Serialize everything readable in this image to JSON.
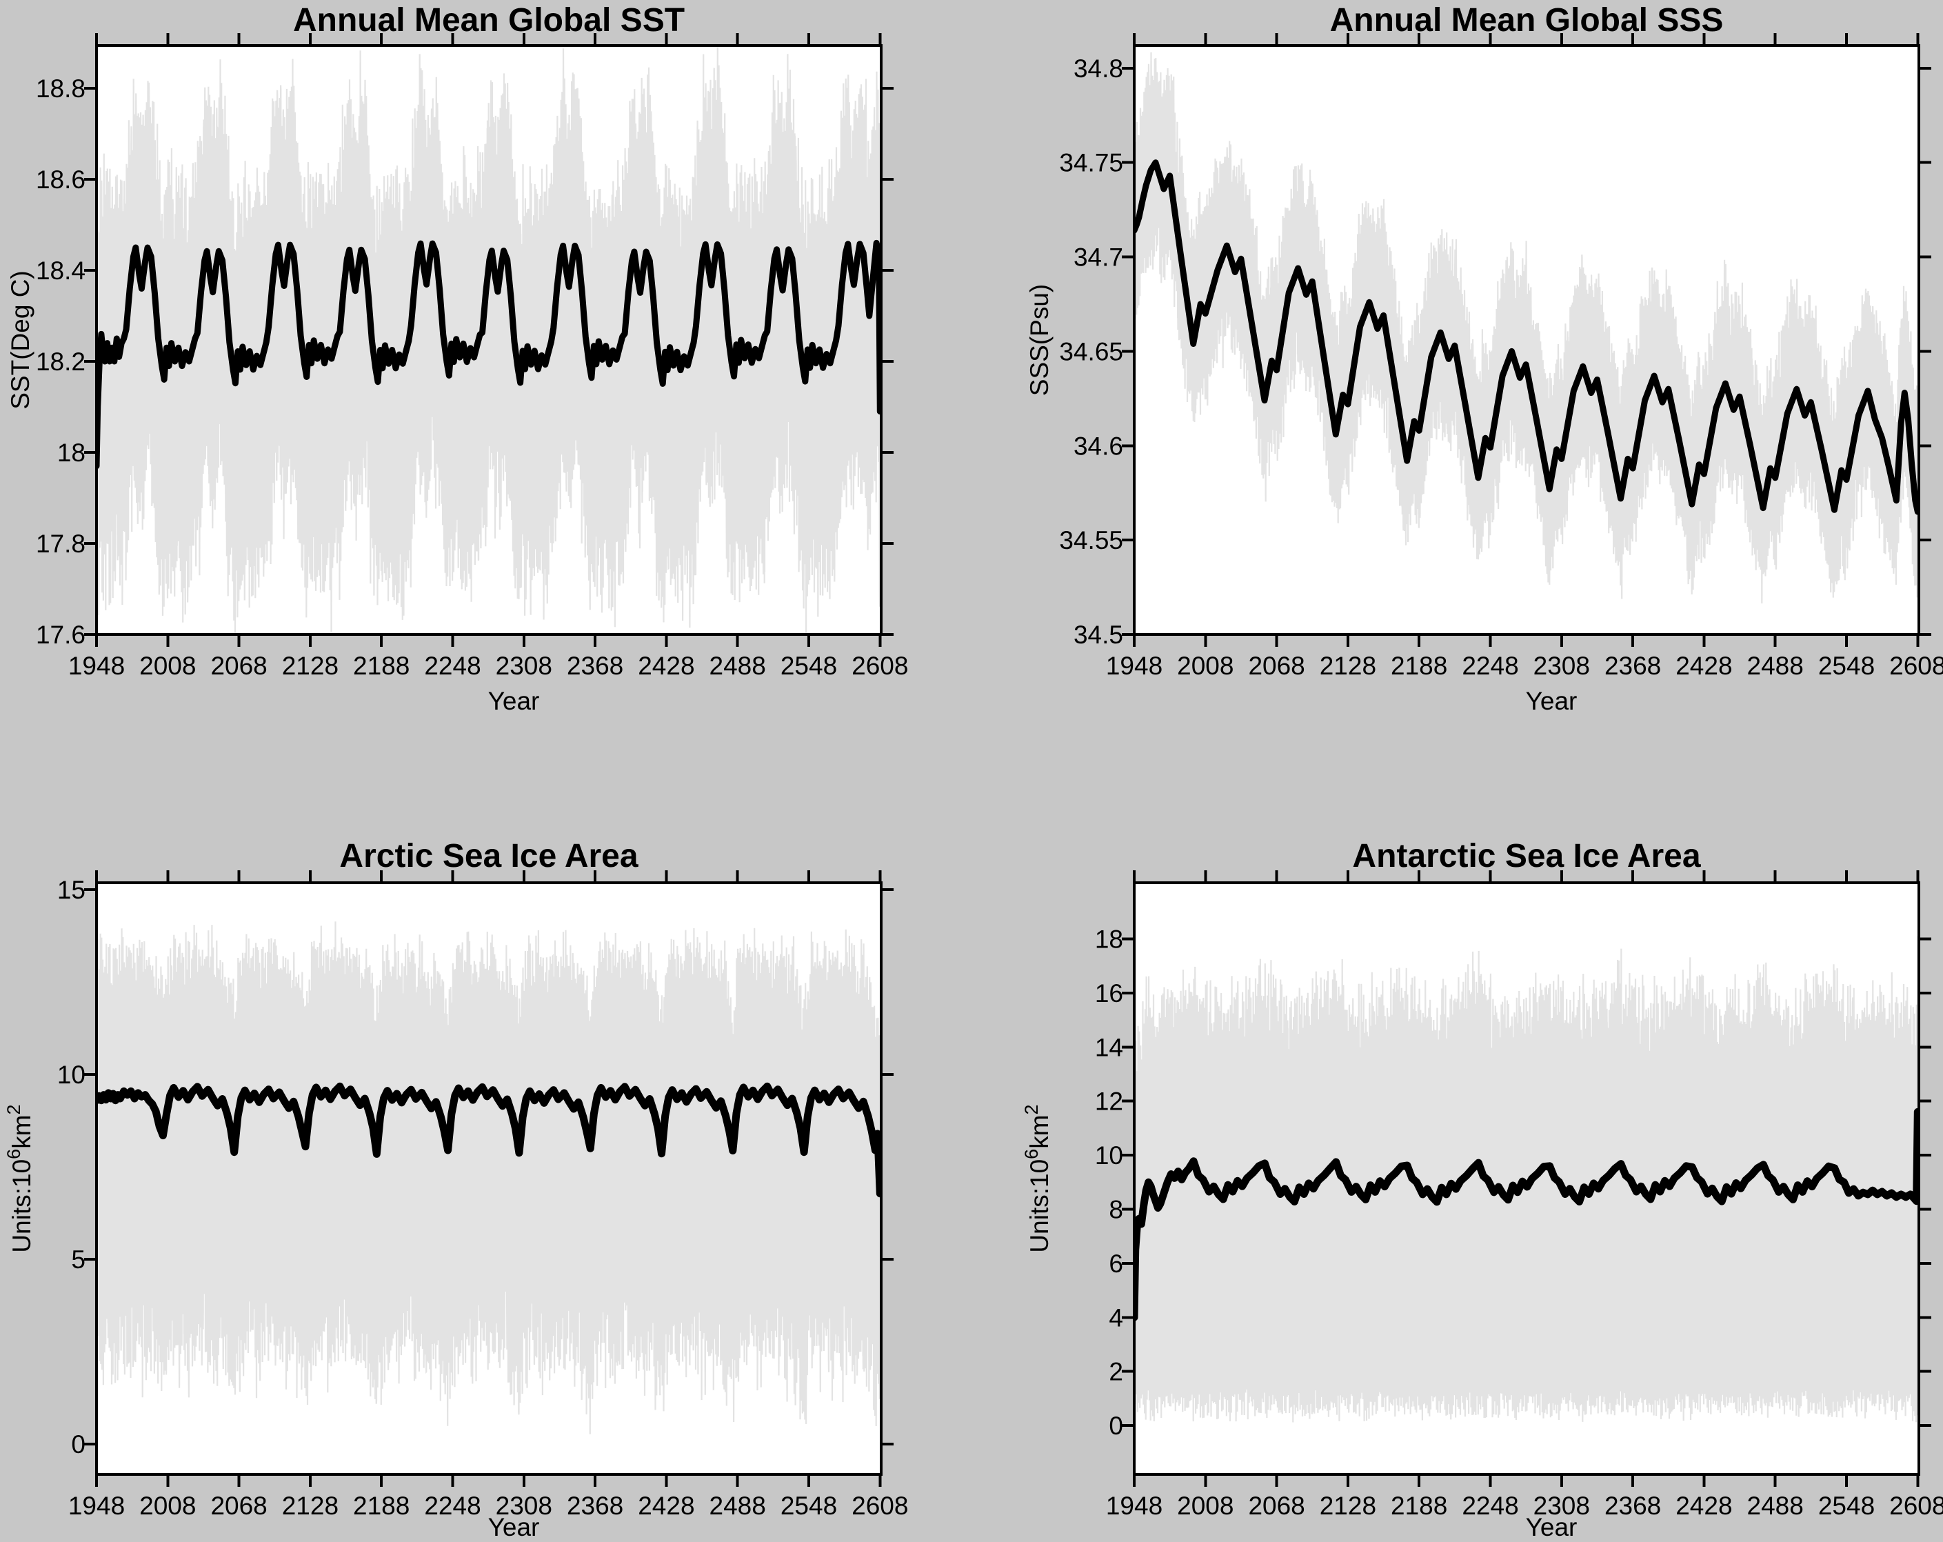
{
  "figure": {
    "background": "#c7c7c7",
    "plot_background": "#ffffff",
    "axis_color": "#000000",
    "monthly_color": "#e3e3e3",
    "annual_color": "#000000"
  },
  "chart_data": [
    {
      "panel": "top-left",
      "type": "line",
      "title": "Annual Mean Global SST",
      "xlabel": "Year",
      "ylabel": "SST(Deg C)",
      "ylabel_parts": [
        {
          "t": "SST(Deg C)"
        }
      ],
      "x_range": [
        1948,
        2609
      ],
      "y_range": [
        17.6,
        18.894
      ],
      "x_ticks": [
        1948,
        2008,
        2068,
        2128,
        2188,
        2248,
        2308,
        2368,
        2428,
        2488,
        2548,
        2608
      ],
      "y_ticks": [
        17.6,
        17.8,
        18,
        18.2,
        18.4,
        18.6,
        18.8
      ],
      "grid": false,
      "legend": null,
      "series": [
        {
          "name": "monthly-sst",
          "role": "noise",
          "color": "#e3e3e3",
          "width": 2.2,
          "seed": 11,
          "points_per_year": 12,
          "amp_top": 0.38,
          "amp_bottom": -0.52,
          "jitter": 0.06
        },
        {
          "name": "annual-mean-sst",
          "role": "annual",
          "color": "#000000",
          "width": 9,
          "prefix": [
            [
              1948,
              17.97
            ],
            [
              1949,
              18.1
            ],
            [
              1950.5,
              18.2
            ],
            [
              1952,
              18.26
            ],
            [
              1953.5,
              18.22
            ],
            [
              1955,
              18.2
            ],
            [
              1957,
              18.24
            ],
            [
              1959,
              18.2
            ],
            [
              1961,
              18.23
            ],
            [
              1963,
              18.2
            ],
            [
              1965,
              18.25
            ],
            [
              1967,
              18.21
            ],
            [
              1969,
              18.24
            ],
            [
              1971,
              18.25
            ]
          ],
          "cycles": {
            "anchors": [
              1973,
              2033,
              2093,
              2153,
              2213,
              2273,
              2333,
              2393,
              2453,
              2513,
              2573
            ],
            "template": [
              [
                0,
                18.27
              ],
              [
                3,
                18.36
              ],
              [
                6,
                18.43
              ],
              [
                8,
                18.45
              ],
              [
                11,
                18.39
              ],
              [
                13,
                18.36
              ],
              [
                16,
                18.42
              ],
              [
                18,
                18.45
              ],
              [
                21,
                18.43
              ],
              [
                24,
                18.35
              ],
              [
                27,
                18.25
              ],
              [
                30,
                18.19
              ],
              [
                32,
                18.16
              ],
              [
                34,
                18.23
              ],
              [
                36,
                18.19
              ],
              [
                38,
                18.24
              ],
              [
                41,
                18.2
              ],
              [
                44,
                18.23
              ],
              [
                47,
                18.19
              ],
              [
                50,
                18.22
              ],
              [
                53,
                18.2
              ],
              [
                56,
                18.23
              ],
              [
                58,
                18.25
              ]
            ],
            "value_jitter": [
              0,
              -0.008,
              0.006,
              -0.005,
              0.009,
              -0.007,
              0.004,
              -0.009,
              0.007,
              -0.004,
              0.008
            ]
          },
          "suffix": [
            [
              2599,
              18.3
            ],
            [
              2602,
              18.38
            ],
            [
              2605,
              18.46
            ],
            [
              2607,
              18.44
            ],
            [
              2608,
              18.09
            ]
          ]
        }
      ]
    },
    {
      "panel": "top-right",
      "type": "line",
      "title": "Annual Mean Global SSS",
      "xlabel": "Year",
      "ylabel": "SSS(Psu)",
      "ylabel_parts": [
        {
          "t": "SSS(Psu)"
        }
      ],
      "x_range": [
        1948,
        2609
      ],
      "y_range": [
        34.5,
        34.812
      ],
      "x_ticks": [
        1948,
        2008,
        2068,
        2128,
        2188,
        2248,
        2308,
        2368,
        2428,
        2488,
        2548,
        2608
      ],
      "y_ticks": [
        34.5,
        34.55,
        34.6,
        34.65,
        34.7,
        34.75,
        34.8
      ],
      "grid": false,
      "legend": null,
      "series": [
        {
          "name": "monthly-sss",
          "role": "noise",
          "color": "#e3e3e3",
          "width": 2.2,
          "seed": 22,
          "points_per_year": 12,
          "amp_top": 0.055,
          "amp_bottom": -0.046,
          "jitter": 0.012
        },
        {
          "name": "annual-mean-sss",
          "role": "annual",
          "color": "#000000",
          "width": 9,
          "prefix": [
            [
              1948,
              34.714
            ],
            [
              1950,
              34.717
            ],
            [
              1952,
              34.721
            ],
            [
              1955,
              34.73
            ],
            [
              1958,
              34.738
            ],
            [
              1962,
              34.746
            ]
          ],
          "teeth": {
            "peak_years": [
              1966,
              2026,
              2086,
              2146,
              2206,
              2266,
              2326,
              2386,
              2446,
              2506,
              2566
            ],
            "peak_values": [
              34.75,
              34.706,
              34.694,
              34.676,
              34.66,
              34.65,
              34.642,
              34.637,
              34.633,
              34.63,
              34.629
            ],
            "trough_values": [
              34.654,
              34.624,
              34.606,
              34.592,
              34.583,
              34.577,
              34.572,
              34.569,
              34.567,
              34.566
            ]
          },
          "suffix": [
            [
              2572,
              34.614
            ],
            [
              2578,
              34.604
            ],
            [
              2584,
              34.588
            ],
            [
              2590,
              34.571
            ],
            [
              2594,
              34.612
            ],
            [
              2597,
              34.628
            ],
            [
              2600,
              34.614
            ],
            [
              2603,
              34.59
            ],
            [
              2606,
              34.571
            ],
            [
              2608,
              34.565
            ]
          ]
        }
      ]
    },
    {
      "panel": "bottom-left",
      "type": "line",
      "title": "Arctic Sea Ice Area",
      "xlabel": "Year",
      "ylabel": "Units:10^6 km^2",
      "ylabel_parts": [
        {
          "t": "Units:10"
        },
        {
          "t": "6",
          "sup": true
        },
        {
          "t": "km"
        },
        {
          "t": "2",
          "sup": true
        }
      ],
      "x_range": [
        1948,
        2609
      ],
      "y_range": [
        -0.82,
        15.19
      ],
      "x_ticks": [
        1948,
        2008,
        2068,
        2128,
        2188,
        2248,
        2308,
        2368,
        2428,
        2488,
        2548,
        2608
      ],
      "y_ticks": [
        0,
        5,
        10,
        15
      ],
      "grid": false,
      "legend": null,
      "series": [
        {
          "name": "monthly-arctic-ice",
          "role": "noise",
          "color": "#e3e3e3",
          "width": 2.2,
          "seed": 33,
          "points_per_year": 12,
          "amp_top": 4.1,
          "amp_bottom": -7.5,
          "jitter": 0.4
        },
        {
          "name": "annual-mean-arctic-ice",
          "role": "annual",
          "color": "#000000",
          "width": 11,
          "prefix": [
            [
              1948,
              9.3
            ],
            [
              1950,
              9.42
            ],
            [
              1952,
              9.3
            ],
            [
              1954,
              9.45
            ],
            [
              1956,
              9.32
            ],
            [
              1958,
              9.5
            ],
            [
              1960,
              9.35
            ],
            [
              1962,
              9.48
            ],
            [
              1964,
              9.3
            ],
            [
              1966,
              9.45
            ],
            [
              1968,
              9.35
            ],
            [
              1971,
              9.55
            ],
            [
              1974,
              9.45
            ],
            [
              1977,
              9.55
            ],
            [
              1980,
              9.35
            ],
            [
              1983,
              9.5
            ],
            [
              1986,
              9.4
            ],
            [
              1989,
              9.45
            ],
            [
              1992,
              9.3
            ],
            [
              1995,
              9.2
            ],
            [
              1998,
              9.0
            ],
            [
              2001,
              8.6
            ]
          ],
          "cycles": {
            "anchors": [
              2004,
              2064,
              2124,
              2184,
              2244,
              2304,
              2364,
              2424,
              2484,
              2544,
              2604
            ],
            "anchor_values": [
              8.35,
              7.9,
              8.05,
              7.85,
              7.95,
              7.88,
              8.0,
              7.86,
              7.94,
              7.9,
              7.95
            ],
            "template": [
              [
                3,
                8.9
              ],
              [
                6,
                9.4
              ],
              [
                9,
                9.6
              ],
              [
                13,
                9.35
              ],
              [
                17,
                9.52
              ],
              [
                21,
                9.28
              ],
              [
                25,
                9.5
              ],
              [
                29,
                9.63
              ],
              [
                33,
                9.38
              ],
              [
                38,
                9.55
              ],
              [
                42,
                9.32
              ],
              [
                46,
                9.12
              ],
              [
                50,
                9.3
              ],
              [
                54,
                8.9
              ],
              [
                57,
                8.5
              ]
            ],
            "value_jitter": [
              0.04,
              -0.03,
              0.05,
              -0.04,
              0.03,
              -0.05,
              0.04,
              -0.02,
              0.05,
              -0.03,
              0
            ]
          },
          "suffix": [
            [
              2606,
              8.4
            ],
            [
              2608,
              6.78
            ]
          ]
        }
      ]
    },
    {
      "panel": "bottom-right",
      "type": "line",
      "title": "Antarctic Sea Ice Area",
      "xlabel": "Year",
      "ylabel": "Units:10^6 km^2",
      "ylabel_parts": [
        {
          "t": "Units:10"
        },
        {
          "t": "6",
          "sup": true
        },
        {
          "t": "km"
        },
        {
          "t": "2",
          "sup": true
        }
      ],
      "x_range": [
        1948,
        2609
      ],
      "y_range": [
        -1.81,
        20.08
      ],
      "x_ticks": [
        1948,
        2008,
        2068,
        2128,
        2188,
        2248,
        2308,
        2368,
        2428,
        2488,
        2548,
        2608
      ],
      "y_ticks": [
        0,
        2,
        4,
        6,
        8,
        10,
        12,
        14,
        16,
        18
      ],
      "grid": false,
      "legend": null,
      "series": [
        {
          "name": "monthly-antarctic-ice",
          "role": "noise",
          "color": "#e3e3e3",
          "width": 2.2,
          "seed": 44,
          "points_per_year": 12,
          "amp_top": 7.4,
          "bottom_abs": 0.55,
          "jitter": 0.45
        },
        {
          "name": "annual-mean-antarctic-ice",
          "role": "annual",
          "color": "#000000",
          "width": 11,
          "prefix": [
            [
              1948,
              4.0
            ],
            [
              1949,
              6.5
            ],
            [
              1950.5,
              7.4
            ],
            [
              1952,
              7.65
            ],
            [
              1954,
              7.45
            ],
            [
              1956,
              8.15
            ],
            [
              1958,
              8.7
            ],
            [
              1960,
              9.0
            ],
            [
              1962,
              8.85
            ],
            [
              1964,
              8.55
            ],
            [
              1966,
              8.3
            ],
            [
              1968,
              8.05
            ],
            [
              1970,
              8.2
            ],
            [
              1973,
              8.6
            ],
            [
              1976,
              9.0
            ],
            [
              1979,
              9.3
            ],
            [
              1982,
              9.15
            ],
            [
              1985,
              9.4
            ],
            [
              1988,
              9.1
            ],
            [
              1991,
              9.35
            ],
            [
              1994,
              9.5
            ]
          ],
          "cycles": {
            "anchors": [
              1998,
              2058,
              2118,
              2178,
              2238,
              2298,
              2358,
              2418,
              2478,
              2538
            ],
            "anchor_values": [
              9.78,
              9.7,
              9.75,
              9.62,
              9.72,
              9.6,
              9.68,
              9.56,
              9.65,
              9.52
            ],
            "template": [
              [
                4,
                9.2
              ],
              [
                8,
                9.05
              ],
              [
                13,
                8.6
              ],
              [
                17,
                8.8
              ],
              [
                21,
                8.5
              ],
              [
                25,
                8.32
              ],
              [
                29,
                8.85
              ],
              [
                33,
                8.6
              ],
              [
                37,
                9.0
              ],
              [
                41,
                8.8
              ],
              [
                45,
                9.1
              ],
              [
                50,
                9.3
              ],
              [
                55,
                9.55
              ]
            ],
            "value_jitter": [
              0.05,
              -0.04,
              0.04,
              -0.05,
              0.03,
              -0.04,
              0.05,
              -0.03,
              0.04,
              0
            ]
          },
          "suffix": [
            [
              2542,
              9.1
            ],
            [
              2546,
              9.0
            ],
            [
              2550,
              8.6
            ],
            [
              2554,
              8.75
            ],
            [
              2558,
              8.5
            ],
            [
              2562,
              8.62
            ],
            [
              2566,
              8.55
            ],
            [
              2570,
              8.7
            ],
            [
              2574,
              8.55
            ],
            [
              2578,
              8.65
            ],
            [
              2582,
              8.5
            ],
            [
              2586,
              8.6
            ],
            [
              2590,
              8.45
            ],
            [
              2594,
              8.55
            ],
            [
              2598,
              8.45
            ],
            [
              2602,
              8.55
            ],
            [
              2605,
              8.4
            ],
            [
              2607,
              8.3
            ],
            [
              2608,
              11.6
            ]
          ]
        }
      ]
    }
  ]
}
